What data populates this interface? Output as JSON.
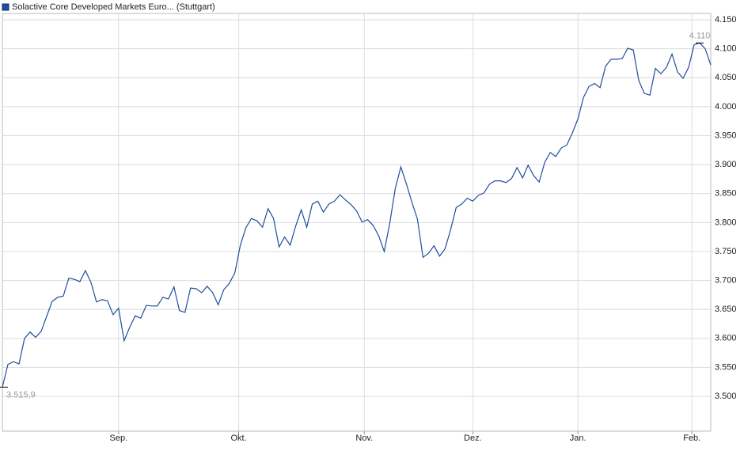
{
  "chart_data": {
    "type": "line",
    "series": [
      {
        "name": "Solactive Core Developed Markets Euro... (Stuttgart)",
        "color": "#1f4e9c",
        "values": [
          3515.9,
          3555,
          3560,
          3556,
          3600,
          3611,
          3602,
          3612,
          3638,
          3664,
          3671,
          3673,
          3704,
          3702,
          3698,
          3717,
          3697,
          3663,
          3667,
          3665,
          3641,
          3652,
          3596,
          3619,
          3639,
          3635,
          3657,
          3656,
          3656,
          3671,
          3668,
          3689,
          3648,
          3645,
          3687,
          3686,
          3679,
          3690,
          3679,
          3658,
          3684,
          3695,
          3713,
          3761,
          3791,
          3807,
          3803,
          3792,
          3824,
          3807,
          3758,
          3775,
          3761,
          3794,
          3822,
          3792,
          3832,
          3837,
          3818,
          3832,
          3837,
          3848,
          3839,
          3831,
          3820,
          3801,
          3805,
          3795,
          3777,
          3750,
          3799,
          3859,
          3896,
          3867,
          3835,
          3806,
          3740,
          3747,
          3760,
          3742,
          3755,
          3788,
          3826,
          3832,
          3842,
          3837,
          3847,
          3851,
          3866,
          3872,
          3872,
          3869,
          3876,
          3895,
          3877,
          3899,
          3881,
          3870,
          3904,
          3921,
          3914,
          3929,
          3934,
          3955,
          3979,
          4016,
          4035,
          4040,
          4033,
          4070,
          4082,
          4082,
          4083,
          4101,
          4098,
          4045,
          4023,
          4020,
          4066,
          4057,
          4068,
          4091,
          4060,
          4049,
          4068,
          4107,
          4110,
          4100,
          4072
        ]
      }
    ],
    "start_label": "3.515,9",
    "high_label": "4.110",
    "xlim": [
      0,
      128
    ],
    "xticks": [
      {
        "value": 21,
        "label": "Sep."
      },
      {
        "value": 42.7,
        "label": "Okt."
      },
      {
        "value": 65.4,
        "label": "Nov."
      },
      {
        "value": 85,
        "label": "Dez."
      },
      {
        "value": 104,
        "label": "Jan."
      },
      {
        "value": 124.6,
        "label": "Feb."
      }
    ],
    "ylim": [
      3440,
      4161
    ],
    "yticks": [
      {
        "value": 3500,
        "label": "3.500"
      },
      {
        "value": 3550,
        "label": "3.550"
      },
      {
        "value": 3600,
        "label": "3.600"
      },
      {
        "value": 3650,
        "label": "3.650"
      },
      {
        "value": 3700,
        "label": "3.700"
      },
      {
        "value": 3750,
        "label": "3.750"
      },
      {
        "value": 3800,
        "label": "3.800"
      },
      {
        "value": 3850,
        "label": "3.850"
      },
      {
        "value": 3900,
        "label": "3.900"
      },
      {
        "value": 3950,
        "label": "3.950"
      },
      {
        "value": 4000,
        "label": "4.000"
      },
      {
        "value": 4050,
        "label": "4.050"
      },
      {
        "value": 4100,
        "label": "4.100"
      },
      {
        "value": 4150,
        "label": "4.150"
      }
    ],
    "grid": true
  }
}
